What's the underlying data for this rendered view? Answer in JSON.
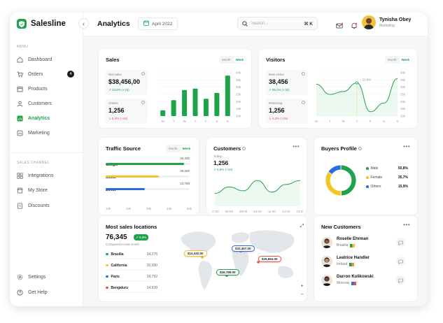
{
  "brand": {
    "name": "Salesline"
  },
  "sidebar": {
    "menu_label": "MENU",
    "items": [
      {
        "label": "Dashboard",
        "icon": "home-icon"
      },
      {
        "label": "Orders",
        "icon": "cart-icon",
        "badge": "4"
      },
      {
        "label": "Products",
        "icon": "box-icon"
      },
      {
        "label": "Customers",
        "icon": "user-icon"
      },
      {
        "label": "Analytics",
        "icon": "chart-icon",
        "active": true
      },
      {
        "label": "Marketing",
        "icon": "megaphone-icon"
      }
    ],
    "channel_label": "SALES CHANNEL",
    "channel_items": [
      {
        "label": "Integrations",
        "icon": "grid-icon"
      },
      {
        "label": "My Store",
        "icon": "store-icon"
      },
      {
        "label": "Discounts",
        "icon": "tag-icon"
      }
    ],
    "bottom_items": [
      {
        "label": "Settings",
        "icon": "gear-icon"
      },
      {
        "label": "Get Help",
        "icon": "help-icon"
      }
    ]
  },
  "header": {
    "title": "Analytics",
    "date": "April 2022",
    "search_placeholder": "Search...",
    "search_shortcut": "⌘ K",
    "user_name": "Tynisha Obey",
    "user_role": "Marketing"
  },
  "sales": {
    "title": "Sales",
    "toggle": [
      "Month",
      "Week"
    ],
    "net_sales": {
      "label": "Net sales",
      "value": "$38,456,00",
      "delta": "22,8% (+15)"
    },
    "orders": {
      "label": "Orders",
      "value": "1,256",
      "delta": "6,3% (+15)"
    },
    "chart_data": {
      "type": "bar",
      "categories": [
        "M",
        "T",
        "W",
        "T",
        "F",
        "S",
        "S"
      ],
      "y_ticks": [
        "40k",
        "35k",
        "30k",
        "25k",
        "20k",
        "15k",
        "10k"
      ],
      "values": [
        14,
        21,
        28,
        29,
        22,
        26,
        38
      ],
      "ylim": [
        10,
        40
      ],
      "color": "#1fa34a"
    }
  },
  "visitors": {
    "title": "Visitors",
    "toggle": [
      "Month",
      "Week"
    ],
    "new_visitor": {
      "label": "New visitor",
      "value": "38,456",
      "delta": "96,2% (+15)"
    },
    "returning": {
      "label": "Returning",
      "value": "1,256",
      "delta": "6,3% (+15)"
    },
    "chart_data": {
      "type": "line",
      "categories": [
        "M",
        "T",
        "W",
        "T",
        "F",
        "S",
        "S"
      ],
      "y_ticks": [
        "40k",
        "35k",
        "30k",
        "25k",
        "20k",
        "15k",
        "10k"
      ],
      "values": [
        32,
        25,
        27,
        33,
        13,
        19,
        36
      ],
      "ylim": [
        10,
        40
      ],
      "highlight_label": "23,5M",
      "color": "#1fa34a"
    }
  },
  "traffic": {
    "title": "Traffic Source",
    "toggle": [
      "Month",
      "Week"
    ],
    "sources": [
      {
        "name": "Google",
        "value": "45,345",
        "pct": 0.93,
        "color": "#1fa34a"
      },
      {
        "name": "Social",
        "value": "30,000",
        "pct": 0.63,
        "color": "#f5c523"
      },
      {
        "name": "Direct",
        "value": "23,789",
        "pct": 0.47,
        "color": "#2d6ae3"
      }
    ],
    "x_ticks": [
      "10k",
      "20k",
      "30k",
      "40k",
      "50k"
    ]
  },
  "customers": {
    "title": "Customers",
    "today_label": "Today",
    "value": "1,256",
    "delta": "5,5% (+15)",
    "chart_data": {
      "type": "area",
      "x": [
        "07:00",
        "08:00",
        "09:00",
        "10:00",
        "11:00",
        "12:00",
        "13:00"
      ],
      "values": [
        20,
        30,
        24,
        40,
        22,
        34,
        40
      ],
      "ylim": [
        0,
        50
      ],
      "color": "#1fa34a"
    }
  },
  "buyers": {
    "title": "Buyers Profile",
    "chart_data": {
      "type": "pie",
      "slices": [
        {
          "label": "Male",
          "value": 50.8,
          "pct": "50,8%",
          "color": "#1fa34a"
        },
        {
          "label": "Female",
          "value": 35.7,
          "pct": "35,7%",
          "color": "#f5c523"
        },
        {
          "label": "Others",
          "value": 15.9,
          "pct": "15,9%",
          "color": "#2d6ae3"
        }
      ]
    }
  },
  "locations": {
    "title": "Most sales locations",
    "value": "76,345",
    "delta": "5,8%",
    "subtitle": "Compared to last month",
    "rows": [
      {
        "name": "Brasilia",
        "value": "34,276",
        "color": "#1fa34a"
      },
      {
        "name": "California",
        "value": "20,390",
        "color": "#f5c523"
      },
      {
        "name": "Paris",
        "value": "19,792",
        "color": "#2d6ae3"
      },
      {
        "name": "Bengaluru",
        "value": "14,639",
        "color": "#e5533d"
      }
    ],
    "pins": [
      {
        "label": "$14,432.00",
        "color": "#f5c523"
      },
      {
        "label": "$32,457.00",
        "color": "#2d6ae3"
      },
      {
        "label": "$25,654.00",
        "color": "#e5533d"
      },
      {
        "label": "$26,789.00",
        "color": "#1fa34a"
      }
    ]
  },
  "new_customers": {
    "title": "New Customers",
    "rows": [
      {
        "name": "Roselle Ehrman",
        "location": "Brasilia",
        "skin": "#8a5a44",
        "hair": "#2b1a12",
        "flag": [
          "#1fa34a",
          "#f5c523"
        ]
      },
      {
        "name": "Leatrice Handler",
        "location": "Ireland",
        "skin": "#c08a62",
        "hair": "#1e1e1e",
        "flag": [
          "#1fa34a",
          "#ff8c2a"
        ]
      },
      {
        "name": "Darron Kulikowski",
        "location": "Moscow",
        "skin": "#6b4a3a",
        "hair": "#111111",
        "flag": [
          "#2d6ae3",
          "#e5533d"
        ]
      }
    ]
  }
}
